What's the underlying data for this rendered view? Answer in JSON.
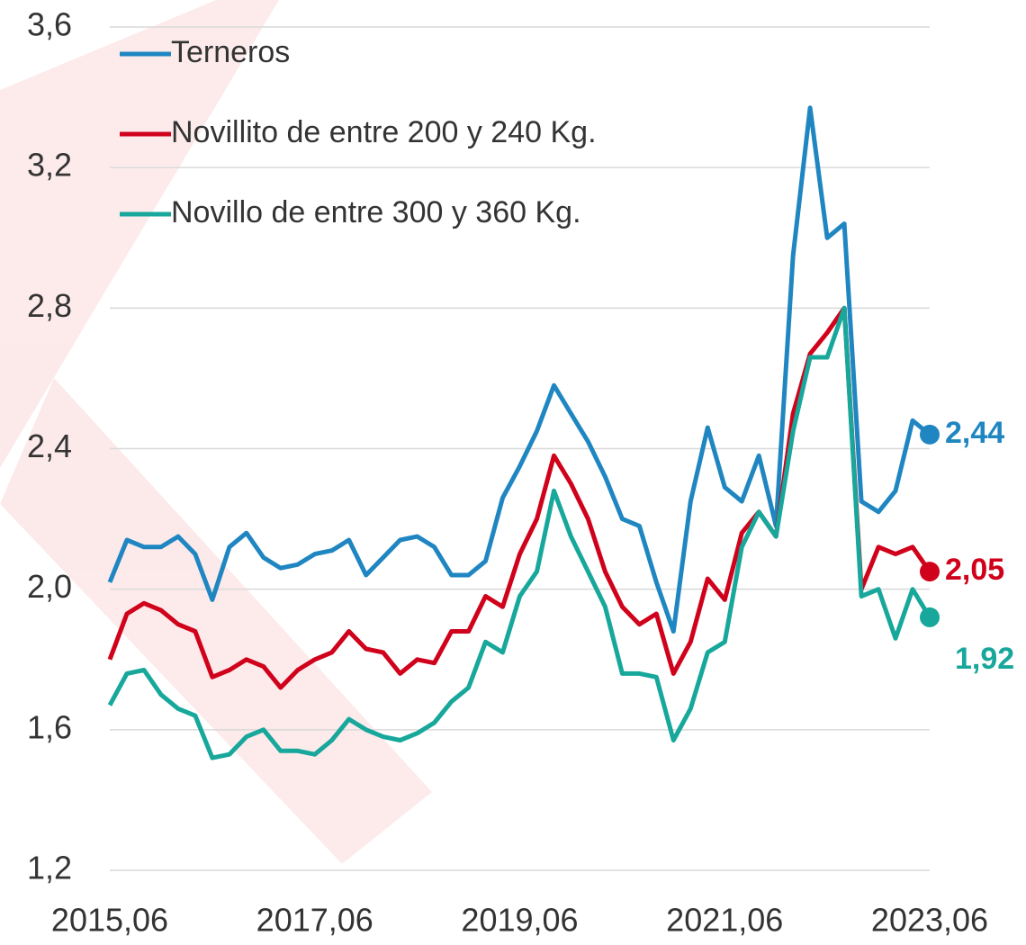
{
  "chart_data": {
    "type": "line",
    "categories": [
      "2015,06",
      null,
      null,
      null,
      null,
      null,
      null,
      null,
      null,
      null,
      null,
      null,
      "2017,06",
      null,
      null,
      null,
      null,
      null,
      null,
      null,
      null,
      null,
      null,
      null,
      "2019,06",
      null,
      null,
      null,
      null,
      null,
      null,
      null,
      null,
      null,
      null,
      null,
      "2021,06",
      null,
      null,
      null,
      null,
      null,
      null,
      null,
      null,
      null,
      null,
      null,
      "2023,06"
    ],
    "series": [
      {
        "name": "Terneros",
        "color": "#1f86c1",
        "values": [
          2.02,
          2.14,
          2.12,
          2.12,
          2.15,
          2.1,
          1.97,
          2.12,
          2.16,
          2.09,
          2.06,
          2.07,
          2.1,
          2.11,
          2.14,
          2.04,
          2.09,
          2.14,
          2.15,
          2.12,
          2.04,
          2.04,
          2.08,
          2.26,
          2.35,
          2.45,
          2.58,
          2.5,
          2.42,
          2.32,
          2.2,
          2.18,
          2.02,
          1.88,
          2.25,
          2.46,
          2.29,
          2.25,
          2.38,
          2.18,
          2.95,
          3.37,
          3.0,
          3.04,
          2.25,
          2.22,
          2.28,
          2.48,
          2.44
        ],
        "value_labels": [
          null,
          null,
          null,
          null,
          null,
          null,
          null,
          null,
          null,
          null,
          null,
          null,
          null,
          null,
          null,
          null,
          null,
          null,
          null,
          null,
          null,
          null,
          null,
          null,
          null,
          null,
          null,
          null,
          null,
          null,
          null,
          null,
          null,
          null,
          null,
          null,
          null,
          null,
          null,
          null,
          null,
          null,
          null,
          null,
          null,
          null,
          null,
          null,
          "2,44"
        ]
      },
      {
        "name": "Novillito de entre 200 y 240 Kg.",
        "color": "#d0021b",
        "values": [
          1.8,
          1.93,
          1.96,
          1.94,
          1.9,
          1.88,
          1.75,
          1.77,
          1.8,
          1.78,
          1.72,
          1.77,
          1.8,
          1.82,
          1.88,
          1.83,
          1.82,
          1.76,
          1.8,
          1.79,
          1.88,
          1.88,
          1.98,
          1.95,
          2.1,
          2.2,
          2.38,
          2.3,
          2.2,
          2.05,
          1.95,
          1.9,
          1.93,
          1.76,
          1.85,
          2.03,
          1.97,
          2.16,
          2.22,
          2.15,
          2.5,
          2.67,
          2.73,
          2.8,
          2.0,
          2.12,
          2.1,
          2.12,
          2.05
        ],
        "value_labels": [
          null,
          null,
          null,
          null,
          null,
          null,
          null,
          null,
          null,
          null,
          null,
          null,
          null,
          null,
          null,
          null,
          null,
          null,
          null,
          null,
          null,
          null,
          null,
          null,
          null,
          null,
          null,
          null,
          null,
          null,
          null,
          null,
          null,
          null,
          null,
          null,
          null,
          null,
          null,
          null,
          null,
          null,
          null,
          null,
          null,
          null,
          null,
          null,
          "2,05"
        ]
      },
      {
        "name": "Novillo de entre 300 y 360 Kg.",
        "color": "#17a79b",
        "values": [
          1.67,
          1.76,
          1.77,
          1.7,
          1.66,
          1.64,
          1.52,
          1.53,
          1.58,
          1.6,
          1.54,
          1.54,
          1.53,
          1.57,
          1.63,
          1.6,
          1.58,
          1.57,
          1.59,
          1.62,
          1.68,
          1.72,
          1.85,
          1.82,
          1.98,
          2.05,
          2.28,
          2.15,
          2.05,
          1.95,
          1.76,
          1.76,
          1.75,
          1.57,
          1.66,
          1.82,
          1.85,
          2.12,
          2.22,
          2.15,
          2.45,
          2.66,
          2.66,
          2.8,
          1.98,
          2.0,
          1.86,
          2.0,
          1.92
        ],
        "value_labels": [
          null,
          null,
          null,
          null,
          null,
          null,
          null,
          null,
          null,
          null,
          null,
          null,
          null,
          null,
          null,
          null,
          null,
          null,
          null,
          null,
          null,
          null,
          null,
          null,
          null,
          null,
          null,
          null,
          null,
          null,
          null,
          null,
          null,
          null,
          null,
          null,
          null,
          null,
          null,
          null,
          null,
          null,
          null,
          null,
          null,
          null,
          null,
          null,
          "1,92"
        ]
      }
    ],
    "ylim": [
      1.2,
      3.6
    ],
    "yticks": [
      {
        "value": 1.2,
        "label": "1,2"
      },
      {
        "value": 1.6,
        "label": "1,6"
      },
      {
        "value": 2.0,
        "label": "2,0"
      },
      {
        "value": 2.4,
        "label": "2,4"
      },
      {
        "value": 2.8,
        "label": "2,8"
      },
      {
        "value": 3.2,
        "label": "3,2"
      },
      {
        "value": 3.6,
        "label": "3,6"
      }
    ],
    "grid": true,
    "legend": "top-left"
  }
}
